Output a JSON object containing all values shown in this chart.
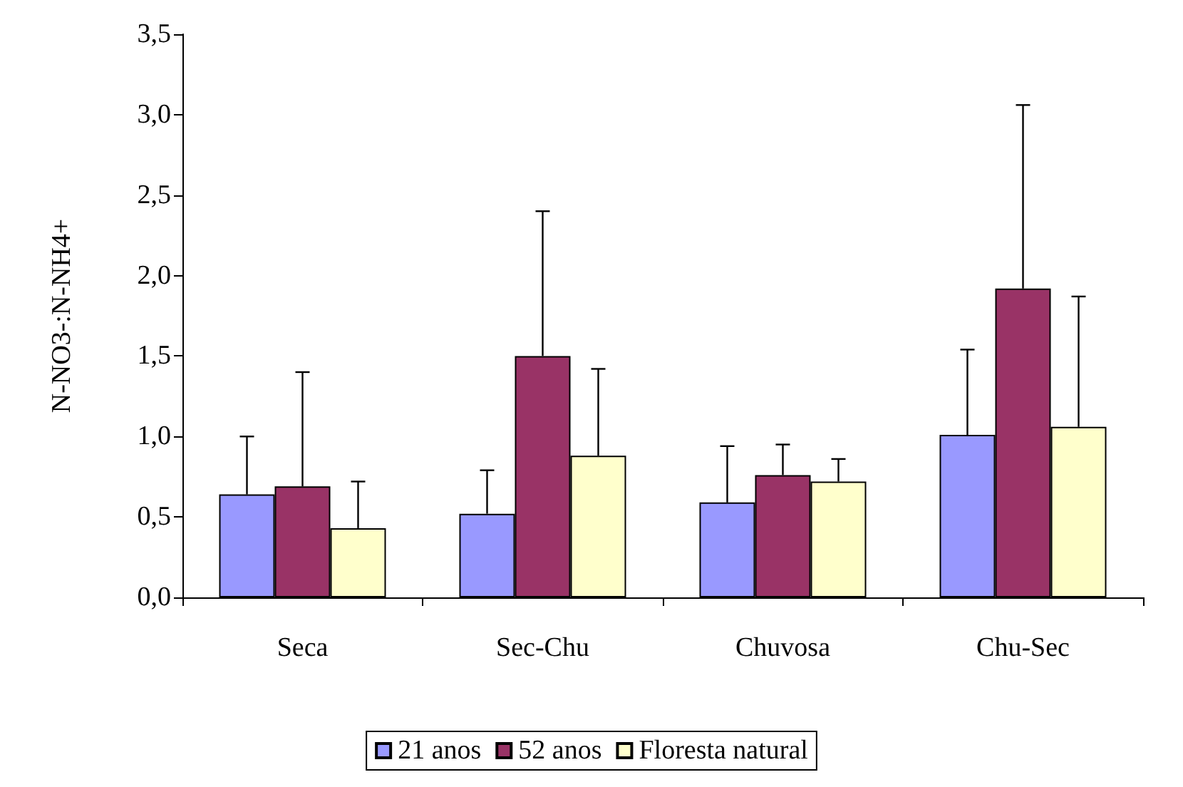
{
  "chart_data": {
    "type": "bar",
    "ylabel": "N-NO3-:N-NH4+",
    "categories": [
      "Seca",
      "Sec-Chu",
      "Chuvosa",
      "Chu-Sec"
    ],
    "series": [
      {
        "name": "21 anos",
        "color": "#9999ff",
        "values": [
          0.64,
          0.52,
          0.59,
          1.01
        ],
        "errors": [
          [
            0.64,
            1.0
          ],
          [
            0.52,
            0.79
          ],
          [
            0.59,
            0.94
          ],
          [
            1.01,
            1.54
          ]
        ]
      },
      {
        "name": "52 anos",
        "color": "#993366",
        "values": [
          0.69,
          1.5,
          0.76,
          1.92
        ],
        "errors": [
          [
            0.69,
            1.4
          ],
          [
            1.5,
            2.4
          ],
          [
            0.76,
            0.95
          ],
          [
            1.92,
            3.06
          ]
        ]
      },
      {
        "name": "Floresta natural",
        "color": "#ffffcc",
        "values": [
          0.43,
          0.88,
          0.72,
          1.06
        ],
        "errors": [
          [
            0.43,
            0.72
          ],
          [
            0.88,
            1.42
          ],
          [
            0.72,
            0.86
          ],
          [
            1.06,
            1.87
          ]
        ]
      }
    ],
    "ylim": [
      0,
      3.5
    ],
    "yticks": [
      {
        "value": 0,
        "label": "0,0"
      },
      {
        "value": 0.5,
        "label": "0,5"
      },
      {
        "value": 1,
        "label": "1,0"
      },
      {
        "value": 1.5,
        "label": "1,5"
      },
      {
        "value": 2,
        "label": "2,0"
      },
      {
        "value": 2.5,
        "label": "2,5"
      },
      {
        "value": 3,
        "label": "3,0"
      },
      {
        "value": 3.5,
        "label": "3,5"
      }
    ],
    "grid": false,
    "legend": "bottom"
  }
}
